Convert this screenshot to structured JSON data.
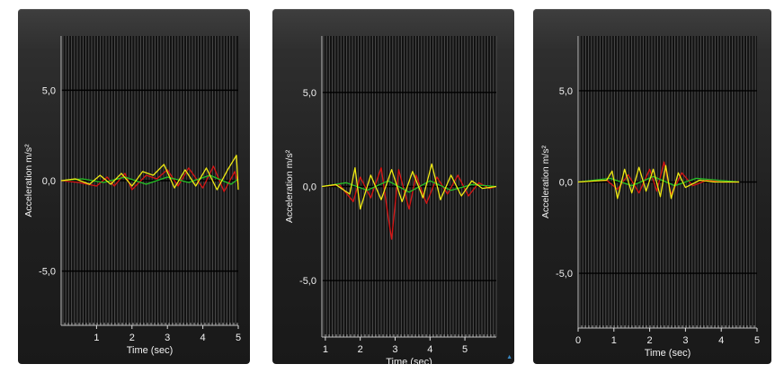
{
  "panels": [
    {
      "ylabel": "Acceleration m/s²",
      "xlabel": "Time (sec)",
      "xticks": [
        "1",
        "2",
        "3",
        "4",
        "5"
      ],
      "yticks": [
        "5,0",
        "0,0",
        "-5,0"
      ],
      "watermark": ""
    },
    {
      "ylabel": "Acceleration m/s²",
      "xlabel": "Time (sec)",
      "xticks": [
        "1",
        "2",
        "3",
        "4",
        "5"
      ],
      "yticks": [
        "5,0",
        "0,0",
        "-5,0"
      ],
      "watermark": "▲"
    },
    {
      "ylabel": "Acceleration m/s²",
      "xlabel": "Time (sec)",
      "xticks": [
        "0",
        "1",
        "2",
        "3",
        "4",
        "5"
      ],
      "yticks": [
        "5,0",
        "0,0",
        "-5,0"
      ],
      "watermark": ""
    }
  ],
  "chart_data": [
    {
      "type": "line",
      "xlim": [
        0,
        5
      ],
      "ylim": [
        -8,
        8
      ],
      "yticks": [
        5,
        0,
        -5
      ],
      "xticks": [
        1,
        2,
        3,
        4,
        5
      ],
      "grid": true,
      "series": [
        {
          "color": "#d81414",
          "x": [
            0,
            0.5,
            1.0,
            1.3,
            1.5,
            1.8,
            2.0,
            2.4,
            2.7,
            3.0,
            3.3,
            3.6,
            4.0,
            4.3,
            4.6,
            4.9,
            5.0
          ],
          "y": [
            0,
            -0.1,
            -0.3,
            0.2,
            -0.3,
            0.4,
            -0.5,
            0.3,
            0.1,
            0.6,
            -0.3,
            0.7,
            -0.4,
            0.8,
            -0.6,
            0.5,
            -0.2
          ]
        },
        {
          "color": "#25c225",
          "x": [
            0,
            0.6,
            1.2,
            1.8,
            2.4,
            3.0,
            3.6,
            4.2,
            4.8,
            5.0
          ],
          "y": [
            0,
            0.1,
            -0.1,
            0.2,
            -0.2,
            0.2,
            -0.1,
            0.3,
            -0.2,
            0.1
          ]
        },
        {
          "color": "#f0ea12",
          "x": [
            0,
            0.4,
            0.8,
            1.1,
            1.4,
            1.7,
            2.0,
            2.3,
            2.6,
            2.9,
            3.2,
            3.5,
            3.8,
            4.1,
            4.4,
            4.7,
            4.95,
            5.0
          ],
          "y": [
            0,
            0.1,
            -0.2,
            0.3,
            -0.2,
            0.4,
            -0.3,
            0.5,
            0.3,
            0.9,
            -0.4,
            0.6,
            -0.3,
            0.7,
            -0.5,
            0.6,
            1.4,
            -0.5
          ]
        }
      ]
    },
    {
      "type": "line",
      "xlim": [
        0.9,
        5.9
      ],
      "ylim": [
        -8,
        8
      ],
      "yticks": [
        5,
        0,
        -5
      ],
      "xticks": [
        1,
        2,
        3,
        4,
        5
      ],
      "grid": true,
      "series": [
        {
          "color": "#d81414",
          "x": [
            0.9,
            1.4,
            1.8,
            2.0,
            2.3,
            2.6,
            2.8,
            2.9,
            3.1,
            3.4,
            3.6,
            3.9,
            4.2,
            4.5,
            4.8,
            5.1,
            5.4,
            5.7,
            5.9
          ],
          "y": [
            0,
            0.1,
            -0.8,
            0.5,
            -0.6,
            1.0,
            -1.6,
            -2.8,
            0.9,
            -1.2,
            0.6,
            -0.9,
            0.5,
            -0.4,
            0.6,
            -0.5,
            0.2,
            -0.1,
            0
          ]
        },
        {
          "color": "#25c225",
          "x": [
            0.9,
            1.6,
            2.2,
            2.8,
            3.4,
            4.0,
            4.6,
            5.2,
            5.9
          ],
          "y": [
            0,
            0.2,
            -0.2,
            0.3,
            -0.3,
            0.3,
            -0.2,
            0.1,
            0
          ]
        },
        {
          "color": "#f0ea12",
          "x": [
            0.9,
            1.3,
            1.7,
            1.85,
            2.0,
            2.3,
            2.6,
            2.9,
            3.2,
            3.5,
            3.8,
            4.05,
            4.3,
            4.6,
            4.9,
            5.2,
            5.5,
            5.9
          ],
          "y": [
            0,
            0.1,
            -0.4,
            1.0,
            -1.2,
            0.6,
            -0.7,
            0.9,
            -0.8,
            0.8,
            -0.6,
            1.2,
            -0.7,
            0.6,
            -0.5,
            0.3,
            -0.1,
            0
          ]
        }
      ]
    },
    {
      "type": "line",
      "xlim": [
        0,
        5
      ],
      "ylim": [
        -8,
        8
      ],
      "yticks": [
        5,
        0,
        -5
      ],
      "xticks": [
        0,
        1,
        2,
        3,
        4,
        5
      ],
      "grid": true,
      "series": [
        {
          "color": "#d81414",
          "x": [
            0,
            0.8,
            1.1,
            1.4,
            1.7,
            2.0,
            2.2,
            2.4,
            2.6,
            2.9,
            3.2,
            3.6,
            4.0,
            4.5
          ],
          "y": [
            0,
            0.1,
            -0.4,
            0.4,
            -0.6,
            0.7,
            -0.5,
            1.1,
            -0.7,
            0.5,
            -0.2,
            0.1,
            0,
            0
          ]
        },
        {
          "color": "#25c225",
          "x": [
            0,
            0.9,
            1.5,
            2.1,
            2.7,
            3.3,
            3.9,
            4.5
          ],
          "y": [
            0,
            0.2,
            -0.2,
            0.3,
            -0.2,
            0.2,
            0.1,
            0
          ]
        },
        {
          "color": "#f0ea12",
          "x": [
            0,
            0.8,
            0.95,
            1.1,
            1.3,
            1.5,
            1.7,
            1.9,
            2.1,
            2.3,
            2.45,
            2.6,
            2.8,
            3.0,
            3.4,
            3.8,
            4.5
          ],
          "y": [
            0,
            0.1,
            0.6,
            -0.9,
            0.7,
            -0.6,
            0.8,
            -0.5,
            0.7,
            -0.8,
            0.9,
            -0.9,
            0.5,
            -0.3,
            0.1,
            0,
            0
          ]
        }
      ]
    }
  ]
}
